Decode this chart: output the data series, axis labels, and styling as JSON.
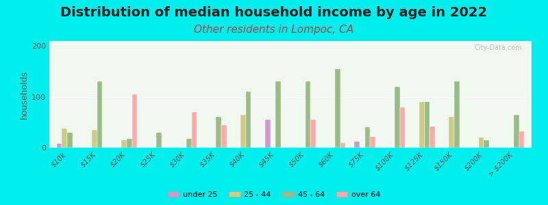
{
  "title": "Distribution of median household income by age in 2022",
  "subtitle": "Other residents in Lompoc, CA",
  "xlabel": "",
  "ylabel": "households",
  "watermark": "City-Data.com",
  "categories": [
    "$10k",
    "$15K",
    "$20K",
    "$25K",
    "$30K",
    "$35K",
    "$40K",
    "$45K",
    "$50K",
    "$60K",
    "$75K",
    "$100K",
    "$125K",
    "$150K",
    "$200K",
    "> $200K"
  ],
  "age_groups": [
    "under 25",
    "25 - 44",
    "45 - 64",
    "over 64"
  ],
  "colors": [
    "#cc99cc",
    "#cccc88",
    "#99bb88",
    "#ffaaaa"
  ],
  "data": {
    "under 25": [
      8,
      0,
      0,
      0,
      0,
      0,
      0,
      55,
      0,
      0,
      12,
      0,
      0,
      0,
      0,
      0
    ],
    "25 - 44": [
      38,
      35,
      15,
      0,
      0,
      0,
      65,
      0,
      0,
      0,
      0,
      0,
      90,
      60,
      20,
      0
    ],
    "45 - 64": [
      30,
      130,
      18,
      30,
      18,
      60,
      110,
      130,
      130,
      155,
      40,
      120,
      90,
      130,
      15,
      65
    ],
    "over 64": [
      0,
      0,
      105,
      0,
      70,
      45,
      0,
      0,
      55,
      10,
      22,
      80,
      42,
      0,
      0,
      32
    ]
  },
  "ylim": [
    0,
    210
  ],
  "yticks": [
    0,
    100,
    200
  ],
  "background_color": "#f0f8f0",
  "outer_background": "#00eeee",
  "title_fontsize": 14,
  "subtitle_fontsize": 11,
  "ylabel_fontsize": 9
}
